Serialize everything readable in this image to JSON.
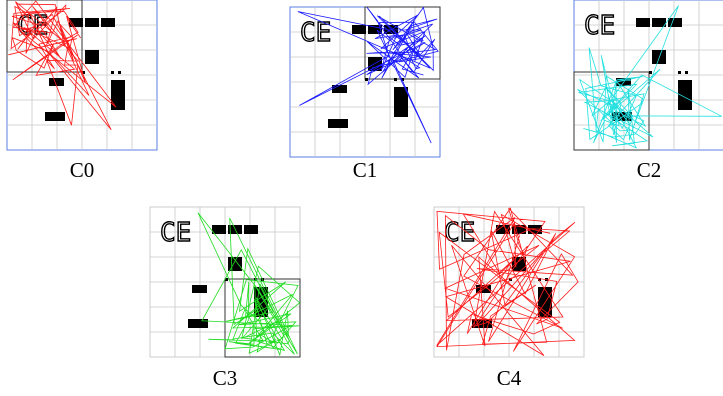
{
  "panels": [
    {
      "label": "C0",
      "color": "#ff1a1a",
      "region": "top-left",
      "border": "#5a7fe0"
    },
    {
      "label": "C1",
      "color": "#1a1aff",
      "region": "top-right",
      "border": "#5a7fe0"
    },
    {
      "label": "C2",
      "color": "#22e0e0",
      "region": "bottom-left",
      "border": "#5a7fe0"
    },
    {
      "label": "C3",
      "color": "#22dd22",
      "region": "bottom-right",
      "border": "#cccccc"
    },
    {
      "label": "C4",
      "color": "#ff1a1a",
      "region": "whole",
      "border": "#cccccc"
    }
  ],
  "grid": {
    "cells": 6,
    "line_color": "#c8c8c8"
  },
  "glyph_text": "CE"
}
